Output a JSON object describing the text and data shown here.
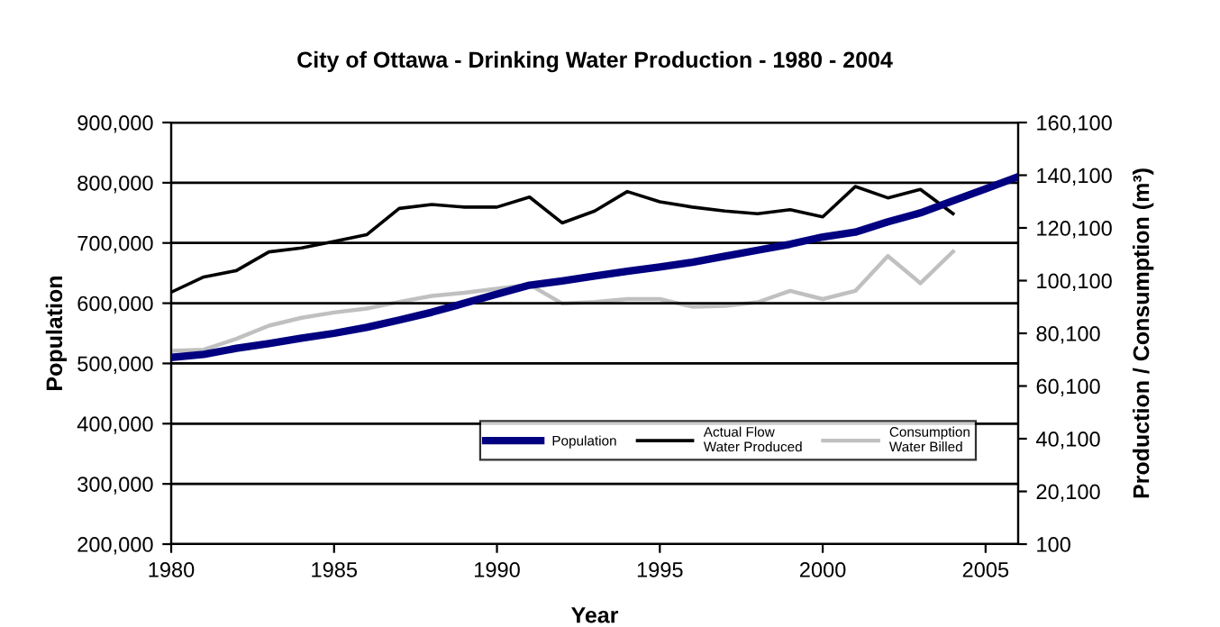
{
  "chart_data": {
    "type": "line",
    "title": "City of Ottawa - Drinking Water Production - 1980 - 2004",
    "xlabel": "Year",
    "ylabel": "Population",
    "y2label": "Production / Consumption (m³)",
    "x": [
      1980,
      1981,
      1982,
      1983,
      1984,
      1985,
      1986,
      1987,
      1988,
      1989,
      1990,
      1991,
      1992,
      1993,
      1994,
      1995,
      1996,
      1997,
      1998,
      1999,
      2000,
      2001,
      2002,
      2003,
      2004,
      2005,
      2006
    ],
    "series": [
      {
        "name": "Population",
        "color": "#000080",
        "values": [
          510000,
          515000,
          525000,
          533000,
          542000,
          550000,
          560000,
          572000,
          585000,
          600000,
          615000,
          630000,
          637000,
          645000,
          653000,
          660000,
          668000,
          678000,
          688000,
          698000,
          710000,
          718000,
          735000,
          750000,
          770000,
          790000,
          810000
        ]
      },
      {
        "name": "Actual Flow\nWater Produced",
        "color": "#000000",
        "axis": "y2",
        "values": [
          95700,
          101500,
          103900,
          111000,
          112500,
          115000,
          117500,
          127500,
          129000,
          128000,
          128000,
          131800,
          122000,
          126500,
          133900,
          130000,
          128000,
          126500,
          125500,
          127000,
          124300,
          135800,
          131500,
          134700,
          125500,
          null,
          null
        ]
      },
      {
        "name": "Consumption\nWater Billed",
        "color": "#c0c0c0",
        "axis": "y2",
        "values": [
          73400,
          73900,
          78000,
          83000,
          86000,
          88000,
          89500,
          92000,
          94300,
          95500,
          97000,
          98600,
          91400,
          92000,
          93100,
          93100,
          90200,
          90500,
          91900,
          96200,
          93100,
          96200,
          109400,
          99100,
          111100,
          null,
          null
        ]
      }
    ],
    "xlim": [
      1980,
      2006
    ],
    "xticks": [
      1980,
      1985,
      1990,
      1995,
      2000,
      2005
    ],
    "ylim": [
      200000,
      900000
    ],
    "yticks": [
      {
        "value": 200000,
        "label": "200,000"
      },
      {
        "value": 300000,
        "label": "300,000"
      },
      {
        "value": 400000,
        "label": "400,000"
      },
      {
        "value": 500000,
        "label": "500,000"
      },
      {
        "value": 600000,
        "label": "600,000"
      },
      {
        "value": 700000,
        "label": "700,000"
      },
      {
        "value": 800000,
        "label": "800,000"
      },
      {
        "value": 900000,
        "label": "900,000"
      }
    ],
    "y2lim": [
      100,
      160100
    ],
    "y2ticks": [
      100,
      {
        "value": 20100,
        "label": "20,100"
      },
      {
        "value": 40100,
        "label": "40,100"
      },
      {
        "value": 60100,
        "label": "60,100"
      },
      {
        "value": 80100,
        "label": "80,100"
      },
      {
        "value": 100100,
        "label": "100,100"
      },
      {
        "value": 120100,
        "label": "120,100"
      },
      {
        "value": 140100,
        "label": "140,100"
      },
      {
        "value": 160100,
        "label": "160,100"
      }
    ],
    "grid": "y",
    "legend": "bottom right",
    "line_style": "solid",
    "marker": "none"
  }
}
